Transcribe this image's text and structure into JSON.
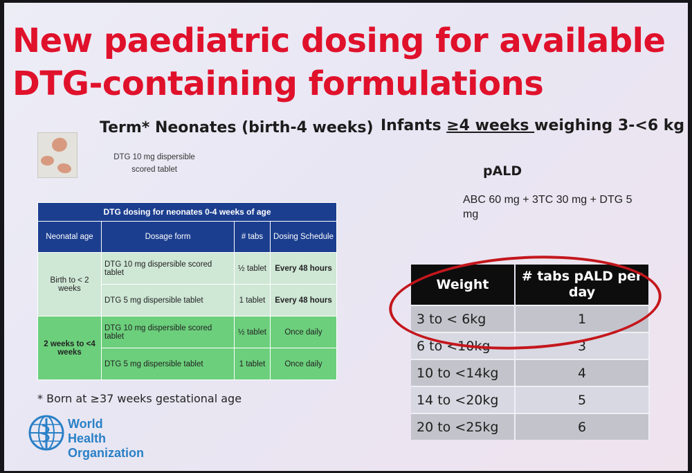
{
  "title": {
    "line1": "New paediatric dosing for available",
    "line2": "DTG-containing formulations"
  },
  "neonates": {
    "heading": "Term* Neonates (birth-4 weeks)",
    "pill_caption_1": "DTG 10 mg dispersible",
    "pill_caption_2": "scored tablet",
    "table": {
      "caption": "DTG dosing for neonates 0-4 weeks of age",
      "headers": [
        "Neonatal age",
        "Dosage form",
        "# tabs",
        "Dosing Schedule"
      ],
      "groups": [
        {
          "age": "Birth to < 2 weeks",
          "rows": [
            {
              "form": "DTG 10 mg dispersible scored tablet",
              "tabs": "½ tablet",
              "schedule": "Every 48 hours"
            },
            {
              "form": "DTG 5 mg dispersible tablet",
              "tabs": "1 tablet",
              "schedule": "Every 48 hours"
            }
          ]
        },
        {
          "age": "2 weeks to <4 weeks",
          "rows": [
            {
              "form": "DTG 10 mg dispersible scored tablet",
              "tabs": "½ tablet",
              "schedule": "Once daily"
            },
            {
              "form": "DTG 5 mg dispersible tablet",
              "tabs": "1 tablet",
              "schedule": "Once daily"
            }
          ]
        }
      ]
    },
    "footnote": "* Born at ≥37 weeks gestational age"
  },
  "infants": {
    "heading_pre": "Infants ",
    "heading_underlined": "≥4 weeks ",
    "heading_post": "weighing 3-<6 kg",
    "pald_label": "pALD",
    "pald_desc": "ABC 60 mg + 3TC 30 mg + DTG 5 mg",
    "table": {
      "headers": [
        "Weight",
        "# tabs pALD per day"
      ],
      "rows": [
        {
          "weight": "3 to < 6kg",
          "tabs": "1"
        },
        {
          "weight": "6 to <10kg",
          "tabs": "3"
        },
        {
          "weight": "10 to <14kg",
          "tabs": "4"
        },
        {
          "weight": "14 to <20kg",
          "tabs": "5"
        },
        {
          "weight": "20 to <25kg",
          "tabs": "6"
        }
      ]
    },
    "highlight_color": "#c4161c"
  },
  "logo": {
    "line1": "World Health",
    "line2": "Organization",
    "color": "#2a80c6",
    "icon": "who-emblem-icon"
  },
  "colors": {
    "title": "#e0112b",
    "table_header_blue": "#1b3e8f",
    "group1_green": "#cfe7d5",
    "group2_green": "#6ccf7c"
  }
}
